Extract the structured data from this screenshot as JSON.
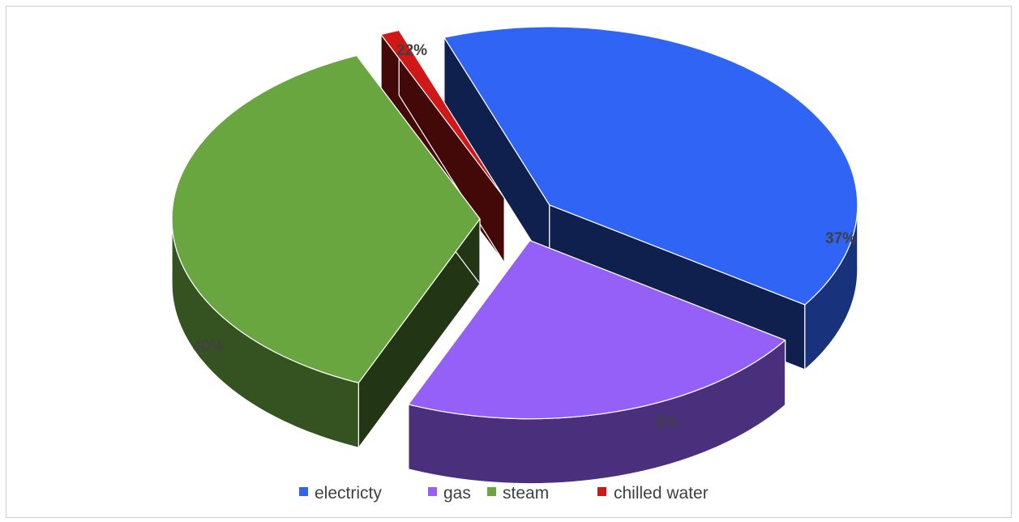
{
  "chart_data": {
    "type": "pie",
    "title": "",
    "categories": [
      "electricty",
      "gas",
      "steam",
      "chilled water"
    ],
    "values": [
      40,
      22,
      37,
      1
    ],
    "data_labels": [
      "40%",
      "22%",
      "37%",
      "1%"
    ],
    "colors": [
      "#2f64f5",
      "#9460f7",
      "#6aa63f",
      "#d01818"
    ],
    "legend_position": "bottom",
    "style": "3d exploded"
  }
}
